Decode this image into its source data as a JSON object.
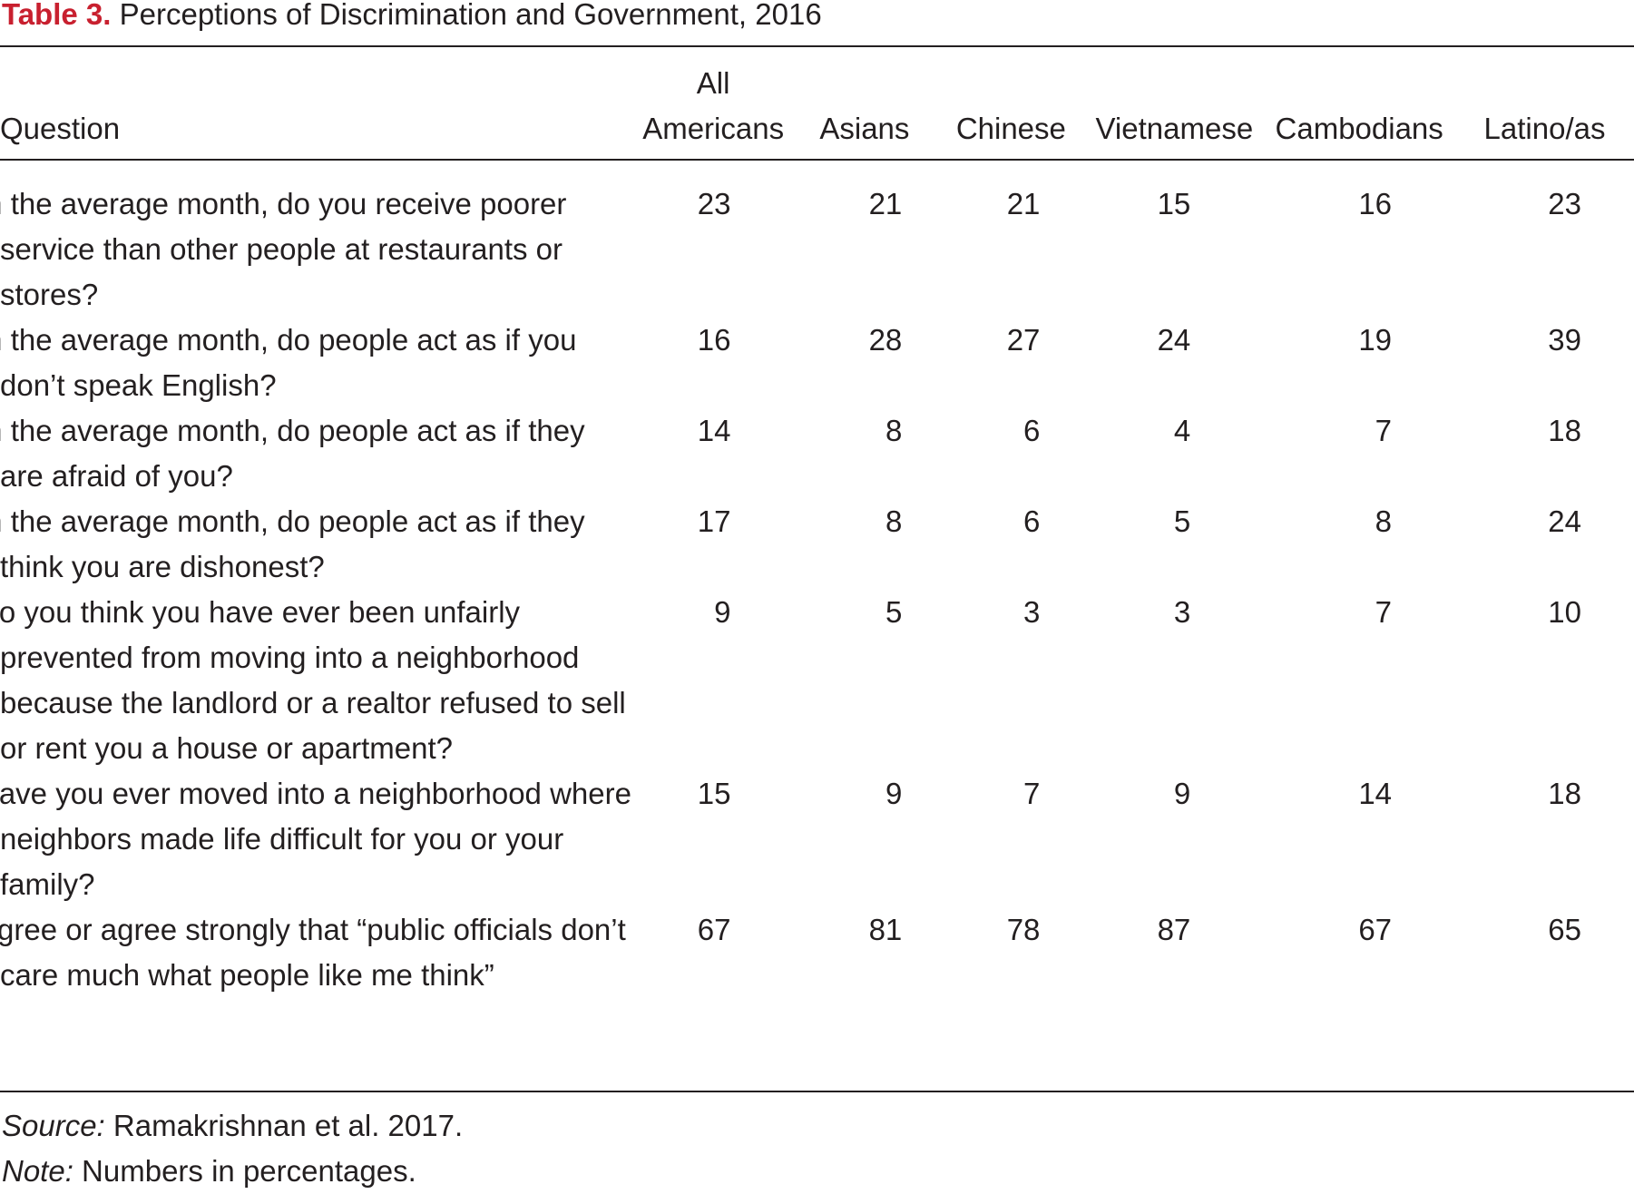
{
  "title": {
    "label": "Table 3.",
    "text": "Perceptions of Discrimination and Government, 2016"
  },
  "columns": {
    "question": "Question",
    "all_line1": "All",
    "all_line2": "Americans",
    "asians": "Asians",
    "chinese": "Chinese",
    "vietnamese": "Vietnamese",
    "cambodians": "Cambodians",
    "latino": "Latino/as"
  },
  "rows": [
    {
      "question": "In the average month, do you receive poorer service than other people at restaurants or stores?",
      "values": [
        "23",
        "21",
        "21",
        "15",
        "16",
        "23"
      ]
    },
    {
      "question": "In the average month, do people act as if you don’t speak English?",
      "values": [
        "16",
        "28",
        "27",
        "24",
        "19",
        "39"
      ]
    },
    {
      "question": "In the average month, do people act as if they are afraid of you?",
      "values": [
        "14",
        "8",
        "6",
        "4",
        "7",
        "18"
      ]
    },
    {
      "question": "In the average month, do people act as if they think you are dishonest?",
      "values": [
        "17",
        "8",
        "6",
        "5",
        "8",
        "24"
      ]
    },
    {
      "question": "Do you think you have ever been unfairly prevented from moving into a neighborhood because the landlord or a realtor refused to sell or rent you a house or apartment?",
      "values": [
        "9",
        "5",
        "3",
        "3",
        "7",
        "10"
      ]
    },
    {
      "question": "Have you ever moved into a neighborhood where neighbors made life difficult for you or your family?",
      "values": [
        "15",
        "9",
        "7",
        "9",
        "14",
        "18"
      ]
    },
    {
      "question": "Agree or agree strongly that “public officials don’t care much what people like me think”",
      "values": [
        "67",
        "81",
        "78",
        "87",
        "67",
        "65"
      ]
    }
  ],
  "footnotes": {
    "source_label": "Source:",
    "source_text": "Ramakrishnan et al. 2017.",
    "note_label": "Note:",
    "note_text": "Numbers in percentages."
  },
  "colors": {
    "title_label": "#c8202f",
    "text": "#231f20"
  }
}
